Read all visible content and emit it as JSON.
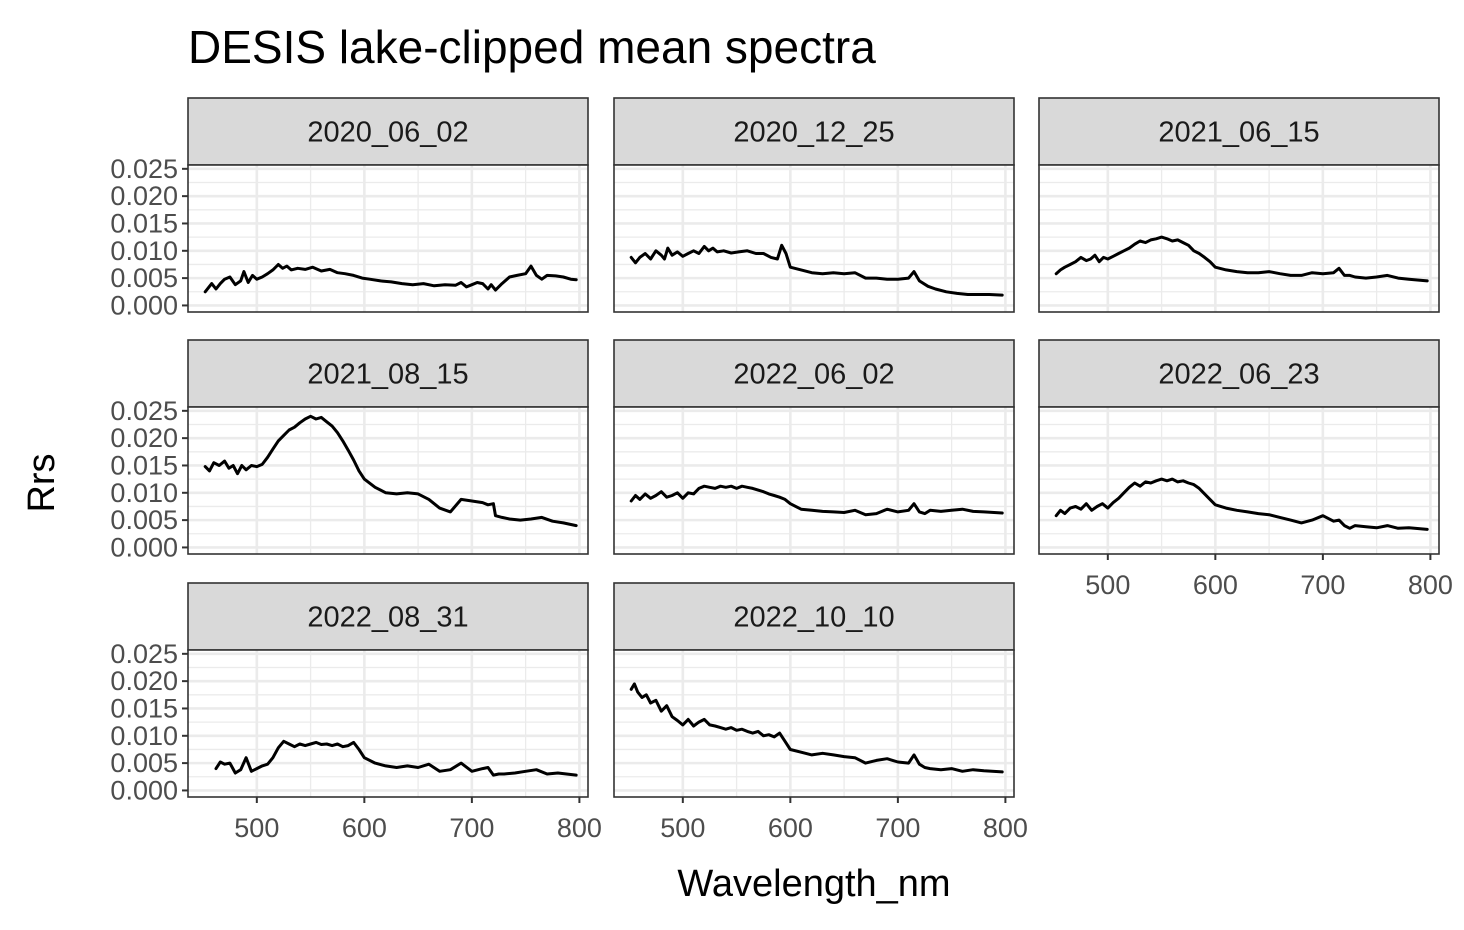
{
  "chart_data": {
    "type": "line",
    "title": "DESIS lake-clipped mean spectra",
    "xlabel": "Wavelength_nm",
    "ylabel": "Rrs",
    "xlim": [
      436,
      808
    ],
    "ylim": [
      -0.0012,
      0.0257
    ],
    "x_ticks": [
      500,
      600,
      700,
      800
    ],
    "x_tick_labels": [
      "500",
      "600",
      "700",
      "800"
    ],
    "y_ticks": [
      0,
      0.005,
      0.01,
      0.015,
      0.02,
      0.025
    ],
    "y_tick_labels": [
      "0.000",
      "0.005",
      "0.010",
      "0.015",
      "0.020",
      "0.025"
    ],
    "grid": true,
    "legend": "none",
    "layout": {
      "columns": 3,
      "rows": 3
    },
    "line_color": "#000000",
    "strip_color": "#d9d9d9",
    "panels": [
      {
        "label": "2020_06_02",
        "x": [
          452,
          458,
          462,
          466,
          470,
          475,
          480,
          485,
          488,
          492,
          496,
          500,
          505,
          510,
          515,
          520,
          524,
          528,
          532,
          538,
          545,
          552,
          560,
          568,
          575,
          582,
          590,
          598,
          605,
          615,
          625,
          635,
          645,
          655,
          665,
          675,
          685,
          690,
          695,
          700,
          705,
          710,
          715,
          718,
          722,
          728,
          735,
          742,
          750,
          755,
          760,
          765,
          770,
          778,
          785,
          792,
          797
        ],
        "y": [
          0.0025,
          0.004,
          0.003,
          0.004,
          0.0048,
          0.0052,
          0.0038,
          0.0045,
          0.0062,
          0.0042,
          0.0055,
          0.0048,
          0.0052,
          0.0058,
          0.0065,
          0.0075,
          0.0068,
          0.0072,
          0.0065,
          0.0068,
          0.0066,
          0.007,
          0.0063,
          0.0066,
          0.006,
          0.0058,
          0.0055,
          0.005,
          0.0048,
          0.0045,
          0.0043,
          0.004,
          0.0038,
          0.004,
          0.0036,
          0.0038,
          0.0037,
          0.0042,
          0.0034,
          0.0038,
          0.0042,
          0.004,
          0.003,
          0.0038,
          0.0028,
          0.004,
          0.0052,
          0.0055,
          0.0058,
          0.0072,
          0.0055,
          0.0048,
          0.0055,
          0.0054,
          0.0052,
          0.0048,
          0.0047
        ]
      },
      {
        "label": "2020_12_25",
        "x": [
          452,
          456,
          460,
          465,
          470,
          475,
          480,
          483,
          486,
          490,
          495,
          500,
          505,
          510,
          515,
          520,
          524,
          528,
          532,
          538,
          545,
          552,
          560,
          568,
          575,
          582,
          588,
          592,
          596,
          600,
          610,
          620,
          630,
          640,
          650,
          660,
          670,
          680,
          690,
          700,
          710,
          715,
          720,
          728,
          735,
          745,
          755,
          765,
          775,
          785,
          797
        ],
        "y": [
          0.0088,
          0.0078,
          0.0088,
          0.0095,
          0.0085,
          0.01,
          0.0092,
          0.0085,
          0.0105,
          0.0092,
          0.0098,
          0.009,
          0.0095,
          0.01,
          0.0095,
          0.0108,
          0.01,
          0.0105,
          0.0098,
          0.01,
          0.0096,
          0.0098,
          0.01,
          0.0095,
          0.0095,
          0.0088,
          0.0085,
          0.011,
          0.0095,
          0.007,
          0.0065,
          0.006,
          0.0058,
          0.006,
          0.0058,
          0.006,
          0.005,
          0.005,
          0.0048,
          0.0048,
          0.005,
          0.0062,
          0.0045,
          0.0035,
          0.003,
          0.0025,
          0.0022,
          0.002,
          0.002,
          0.002,
          0.0019
        ]
      },
      {
        "label": "2021_06_15",
        "x": [
          452,
          456,
          460,
          465,
          470,
          475,
          480,
          484,
          488,
          492,
          496,
          500,
          505,
          510,
          515,
          520,
          525,
          530,
          535,
          540,
          545,
          550,
          555,
          560,
          565,
          570,
          575,
          580,
          585,
          590,
          595,
          600,
          610,
          620,
          630,
          640,
          650,
          660,
          670,
          680,
          690,
          700,
          710,
          715,
          720,
          725,
          730,
          740,
          750,
          760,
          770,
          780,
          797
        ],
        "y": [
          0.0058,
          0.0065,
          0.007,
          0.0075,
          0.008,
          0.0088,
          0.0082,
          0.0085,
          0.0092,
          0.008,
          0.0088,
          0.0085,
          0.009,
          0.0095,
          0.01,
          0.0105,
          0.0112,
          0.0118,
          0.0115,
          0.012,
          0.0122,
          0.0125,
          0.0122,
          0.0118,
          0.012,
          0.0115,
          0.011,
          0.01,
          0.0095,
          0.0088,
          0.008,
          0.007,
          0.0065,
          0.0062,
          0.006,
          0.006,
          0.0062,
          0.0058,
          0.0055,
          0.0055,
          0.006,
          0.0058,
          0.006,
          0.0068,
          0.0055,
          0.0055,
          0.0052,
          0.005,
          0.0052,
          0.0055,
          0.005,
          0.0048,
          0.0045
        ]
      },
      {
        "label": "2021_08_15",
        "x": [
          452,
          456,
          460,
          465,
          470,
          474,
          478,
          482,
          486,
          490,
          495,
          500,
          505,
          510,
          515,
          520,
          525,
          530,
          535,
          540,
          545,
          550,
          555,
          560,
          565,
          570,
          575,
          580,
          585,
          590,
          595,
          600,
          610,
          620,
          630,
          640,
          650,
          660,
          670,
          680,
          690,
          700,
          710,
          715,
          720,
          722,
          728,
          735,
          745,
          755,
          765,
          775,
          785,
          797
        ],
        "y": [
          0.0148,
          0.014,
          0.0155,
          0.015,
          0.0158,
          0.0145,
          0.015,
          0.0135,
          0.015,
          0.0142,
          0.015,
          0.0148,
          0.0152,
          0.0165,
          0.018,
          0.0195,
          0.0205,
          0.0215,
          0.022,
          0.0228,
          0.0235,
          0.024,
          0.0235,
          0.0238,
          0.023,
          0.0222,
          0.021,
          0.0195,
          0.0178,
          0.016,
          0.014,
          0.0125,
          0.011,
          0.01,
          0.0098,
          0.01,
          0.0098,
          0.0088,
          0.0072,
          0.0065,
          0.0088,
          0.0085,
          0.0082,
          0.0078,
          0.008,
          0.0058,
          0.0055,
          0.0052,
          0.005,
          0.0052,
          0.0055,
          0.0048,
          0.0045,
          0.004
        ]
      },
      {
        "label": "2022_06_02",
        "x": [
          452,
          456,
          460,
          465,
          470,
          475,
          480,
          485,
          490,
          495,
          500,
          505,
          510,
          515,
          520,
          525,
          530,
          535,
          540,
          545,
          550,
          555,
          560,
          565,
          570,
          575,
          580,
          585,
          590,
          595,
          600,
          610,
          620,
          630,
          640,
          650,
          660,
          670,
          680,
          690,
          700,
          710,
          715,
          720,
          725,
          730,
          740,
          750,
          760,
          770,
          780,
          797
        ],
        "y": [
          0.0085,
          0.0095,
          0.0088,
          0.0098,
          0.009,
          0.0095,
          0.0102,
          0.0092,
          0.0095,
          0.01,
          0.009,
          0.01,
          0.0098,
          0.0108,
          0.0112,
          0.011,
          0.0108,
          0.0112,
          0.011,
          0.0112,
          0.0108,
          0.0112,
          0.011,
          0.0108,
          0.0105,
          0.0102,
          0.0098,
          0.0095,
          0.0092,
          0.0088,
          0.008,
          0.007,
          0.0068,
          0.0066,
          0.0065,
          0.0064,
          0.0068,
          0.006,
          0.0062,
          0.007,
          0.0065,
          0.0068,
          0.008,
          0.0065,
          0.0062,
          0.0068,
          0.0066,
          0.0068,
          0.007,
          0.0066,
          0.0065,
          0.0063
        ]
      },
      {
        "label": "2022_06_23",
        "x": [
          452,
          456,
          460,
          465,
          470,
          475,
          480,
          485,
          490,
          495,
          500,
          505,
          510,
          515,
          520,
          525,
          530,
          535,
          540,
          545,
          550,
          555,
          560,
          565,
          570,
          575,
          580,
          585,
          590,
          595,
          600,
          610,
          620,
          630,
          640,
          650,
          660,
          670,
          680,
          690,
          700,
          710,
          715,
          720,
          725,
          730,
          740,
          750,
          760,
          770,
          780,
          797
        ],
        "y": [
          0.0058,
          0.0068,
          0.0062,
          0.0072,
          0.0075,
          0.007,
          0.008,
          0.0068,
          0.0075,
          0.008,
          0.0072,
          0.0082,
          0.009,
          0.01,
          0.011,
          0.0118,
          0.0112,
          0.012,
          0.0118,
          0.0122,
          0.0125,
          0.0122,
          0.0125,
          0.012,
          0.0122,
          0.0118,
          0.0115,
          0.0108,
          0.0098,
          0.0088,
          0.0078,
          0.0072,
          0.0068,
          0.0065,
          0.0062,
          0.006,
          0.0055,
          0.005,
          0.0045,
          0.005,
          0.0058,
          0.0048,
          0.005,
          0.004,
          0.0035,
          0.004,
          0.0038,
          0.0036,
          0.004,
          0.0035,
          0.0036,
          0.0033
        ]
      },
      {
        "label": "2022_08_31",
        "x": [
          462,
          466,
          470,
          475,
          480,
          485,
          490,
          495,
          500,
          505,
          510,
          515,
          520,
          525,
          530,
          535,
          540,
          545,
          550,
          555,
          560,
          565,
          570,
          575,
          580,
          585,
          590,
          595,
          600,
          610,
          620,
          630,
          640,
          650,
          660,
          670,
          680,
          690,
          700,
          710,
          715,
          720,
          725,
          730,
          740,
          750,
          760,
          770,
          780,
          797
        ],
        "y": [
          0.004,
          0.0052,
          0.0048,
          0.005,
          0.0032,
          0.0038,
          0.006,
          0.0035,
          0.004,
          0.0045,
          0.0048,
          0.006,
          0.0078,
          0.009,
          0.0085,
          0.008,
          0.0085,
          0.0082,
          0.0085,
          0.0088,
          0.0084,
          0.0085,
          0.0082,
          0.0085,
          0.008,
          0.0082,
          0.0088,
          0.0075,
          0.006,
          0.005,
          0.0045,
          0.0042,
          0.0045,
          0.0042,
          0.0048,
          0.0035,
          0.0038,
          0.005,
          0.0035,
          0.004,
          0.0042,
          0.0028,
          0.003,
          0.003,
          0.0032,
          0.0035,
          0.0038,
          0.003,
          0.0032,
          0.0028
        ]
      },
      {
        "label": "2022_10_10",
        "x": [
          452,
          455,
          458,
          462,
          466,
          470,
          475,
          480,
          485,
          490,
          495,
          500,
          505,
          510,
          515,
          520,
          525,
          530,
          535,
          540,
          545,
          550,
          555,
          560,
          565,
          570,
          575,
          580,
          585,
          590,
          595,
          600,
          610,
          620,
          630,
          640,
          650,
          660,
          670,
          680,
          690,
          700,
          710,
          715,
          720,
          725,
          730,
          740,
          750,
          760,
          770,
          780,
          797
        ],
        "y": [
          0.0185,
          0.0195,
          0.018,
          0.017,
          0.0175,
          0.016,
          0.0165,
          0.0145,
          0.0155,
          0.0135,
          0.0128,
          0.012,
          0.013,
          0.0118,
          0.0125,
          0.013,
          0.012,
          0.0118,
          0.0115,
          0.0112,
          0.0115,
          0.011,
          0.0112,
          0.0108,
          0.0105,
          0.0108,
          0.01,
          0.0102,
          0.0098,
          0.0105,
          0.009,
          0.0075,
          0.007,
          0.0065,
          0.0068,
          0.0065,
          0.0062,
          0.006,
          0.005,
          0.0055,
          0.0058,
          0.0052,
          0.005,
          0.0065,
          0.0048,
          0.0042,
          0.004,
          0.0038,
          0.004,
          0.0035,
          0.0038,
          0.0036,
          0.0034
        ]
      }
    ]
  }
}
